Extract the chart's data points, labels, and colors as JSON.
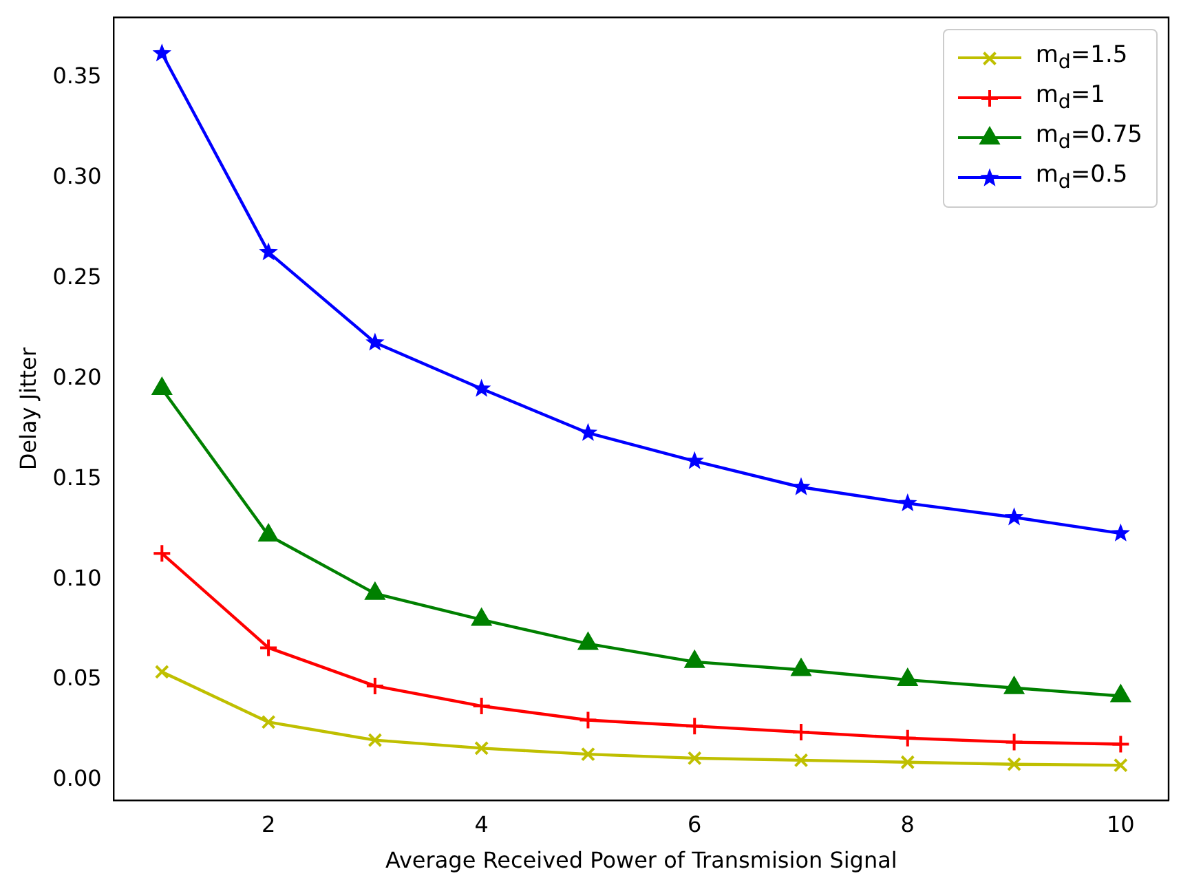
{
  "chart_data": {
    "type": "line",
    "xlabel": "Average Received Power of Transmision Signal",
    "ylabel": "Delay Jitter",
    "x": [
      1,
      2,
      3,
      4,
      5,
      6,
      7,
      8,
      9,
      10
    ],
    "xlim": [
      0.55,
      10.45
    ],
    "xticks": [
      2,
      4,
      6,
      8,
      10
    ],
    "ylim": [
      -0.01,
      0.38
    ],
    "yticks": [
      {
        "value": 0,
        "label": "0.00"
      },
      {
        "value": 0.05,
        "label": "0.05"
      },
      {
        "value": 0.1,
        "label": "0.10"
      },
      {
        "value": 0.15,
        "label": "0.15"
      },
      {
        "value": 0.2,
        "label": "0.20"
      },
      {
        "value": 0.25,
        "label": "0.25"
      },
      {
        "value": 0.3,
        "label": "0.30"
      },
      {
        "value": 0.35,
        "label": "0.35"
      }
    ],
    "grid": false,
    "legend": "top right",
    "line_style": "solid",
    "series": [
      {
        "name": "m$_{d}$=1.5",
        "color": "#bfbf00",
        "marker": "cross",
        "values": [
          0.054,
          0.029,
          0.02,
          0.016,
          0.013,
          0.011,
          0.01,
          0.009,
          0.008,
          0.0075
        ]
      },
      {
        "name": "m$_{d}$=1",
        "color": "#ff0000",
        "marker": "plus",
        "values": [
          0.113,
          0.066,
          0.047,
          0.037,
          0.03,
          0.027,
          0.024,
          0.021,
          0.019,
          0.018
        ]
      },
      {
        "name": "m$_{d}$=0.75",
        "color": "#008000",
        "marker": "triangle",
        "values": [
          0.195,
          0.122,
          0.093,
          0.08,
          0.068,
          0.059,
          0.055,
          0.05,
          0.046,
          0.042
        ]
      },
      {
        "name": "m$_{d}$=0.5",
        "color": "#0000ff",
        "marker": "star",
        "values": [
          0.362,
          0.263,
          0.218,
          0.195,
          0.173,
          0.159,
          0.146,
          0.138,
          0.131,
          0.123
        ]
      }
    ]
  }
}
